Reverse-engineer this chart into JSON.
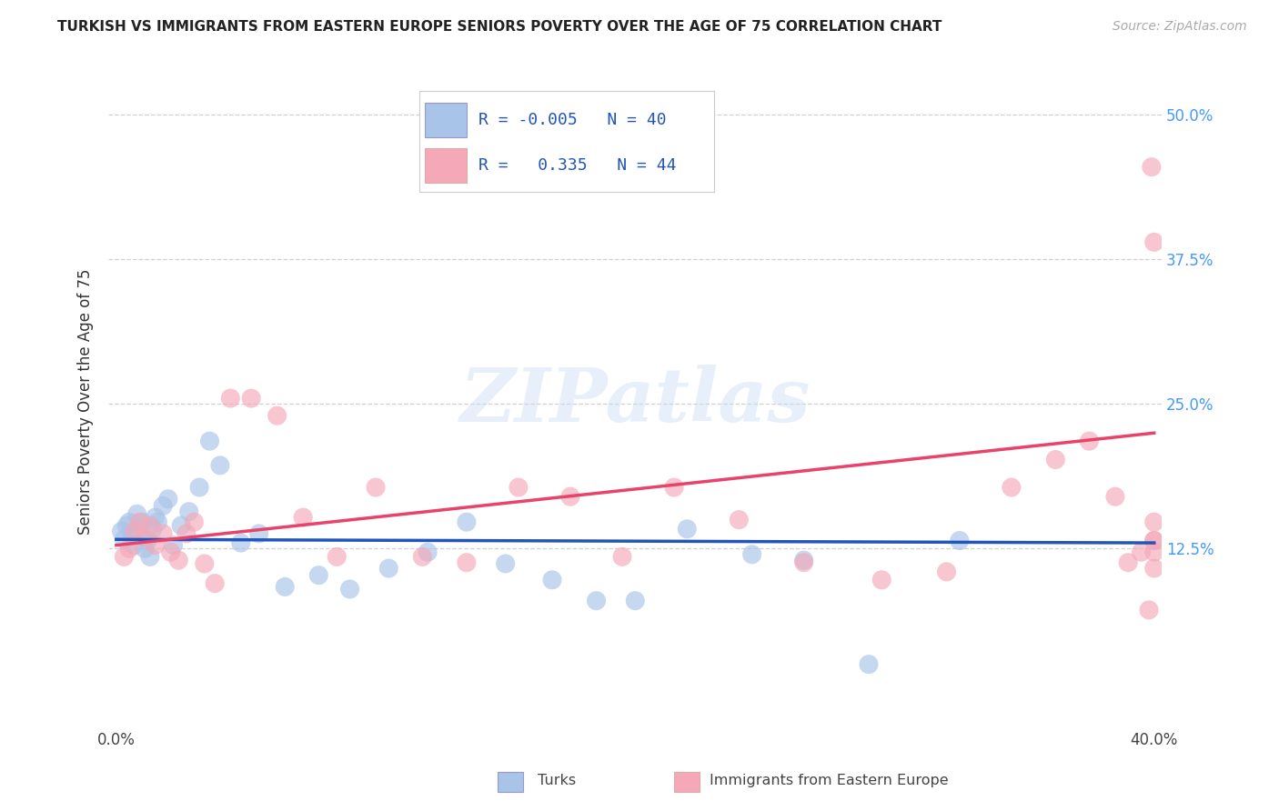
{
  "title": "TURKISH VS IMMIGRANTS FROM EASTERN EUROPE SENIORS POVERTY OVER THE AGE OF 75 CORRELATION CHART",
  "source": "Source: ZipAtlas.com",
  "ylabel": "Seniors Poverty Over the Age of 75",
  "xlim": [
    -0.003,
    0.403
  ],
  "ylim": [
    -0.03,
    0.535
  ],
  "yticks": [
    0.125,
    0.25,
    0.375,
    0.5
  ],
  "yticklabels": [
    "12.5%",
    "25.0%",
    "37.5%",
    "50.0%"
  ],
  "xticks": [
    0.0,
    0.1,
    0.2,
    0.3,
    0.4
  ],
  "xticklabels": [
    "0.0%",
    "",
    "",
    "",
    "40.0%"
  ],
  "grid_color": "#cccccc",
  "background_color": "#ffffff",
  "turks_color": "#a8c4e8",
  "eastern_color": "#f4a8b8",
  "turks_line_color": "#2255bb",
  "eastern_line_color": "#e8436a",
  "legend_R1": "-0.005",
  "legend_N1": "40",
  "legend_R2": "0.335",
  "legend_N2": "44",
  "turks_x": [
    0.002,
    0.003,
    0.004,
    0.005,
    0.006,
    0.007,
    0.008,
    0.009,
    0.01,
    0.011,
    0.012,
    0.013,
    0.014,
    0.015,
    0.016,
    0.018,
    0.02,
    0.022,
    0.025,
    0.028,
    0.032,
    0.036,
    0.04,
    0.048,
    0.055,
    0.065,
    0.078,
    0.09,
    0.105,
    0.12,
    0.135,
    0.15,
    0.168,
    0.185,
    0.2,
    0.22,
    0.245,
    0.265,
    0.29,
    0.325
  ],
  "turks_y": [
    0.14,
    0.133,
    0.145,
    0.148,
    0.138,
    0.128,
    0.155,
    0.142,
    0.148,
    0.125,
    0.132,
    0.118,
    0.142,
    0.152,
    0.148,
    0.162,
    0.168,
    0.128,
    0.145,
    0.157,
    0.178,
    0.218,
    0.197,
    0.13,
    0.138,
    0.092,
    0.102,
    0.09,
    0.108,
    0.122,
    0.148,
    0.112,
    0.098,
    0.08,
    0.08,
    0.142,
    0.12,
    0.115,
    0.025,
    0.132
  ],
  "eastern_x": [
    0.003,
    0.005,
    0.007,
    0.009,
    0.011,
    0.013,
    0.015,
    0.018,
    0.021,
    0.024,
    0.027,
    0.03,
    0.034,
    0.038,
    0.044,
    0.052,
    0.062,
    0.072,
    0.085,
    0.1,
    0.118,
    0.135,
    0.155,
    0.175,
    0.195,
    0.215,
    0.24,
    0.265,
    0.295,
    0.32,
    0.345,
    0.362,
    0.375,
    0.385,
    0.39,
    0.395,
    0.398,
    0.399,
    0.4,
    0.4,
    0.4,
    0.4,
    0.4,
    0.4
  ],
  "eastern_y": [
    0.118,
    0.125,
    0.14,
    0.148,
    0.135,
    0.145,
    0.128,
    0.138,
    0.122,
    0.115,
    0.138,
    0.148,
    0.112,
    0.095,
    0.255,
    0.255,
    0.24,
    0.152,
    0.118,
    0.178,
    0.118,
    0.113,
    0.178,
    0.17,
    0.118,
    0.178,
    0.15,
    0.113,
    0.098,
    0.105,
    0.178,
    0.202,
    0.218,
    0.17,
    0.113,
    0.122,
    0.072,
    0.455,
    0.39,
    0.148,
    0.132,
    0.108,
    0.122,
    0.132
  ],
  "watermark_text": "ZIPatlas",
  "legend_label1": "Turks",
  "legend_label2": "Immigrants from Eastern Europe"
}
